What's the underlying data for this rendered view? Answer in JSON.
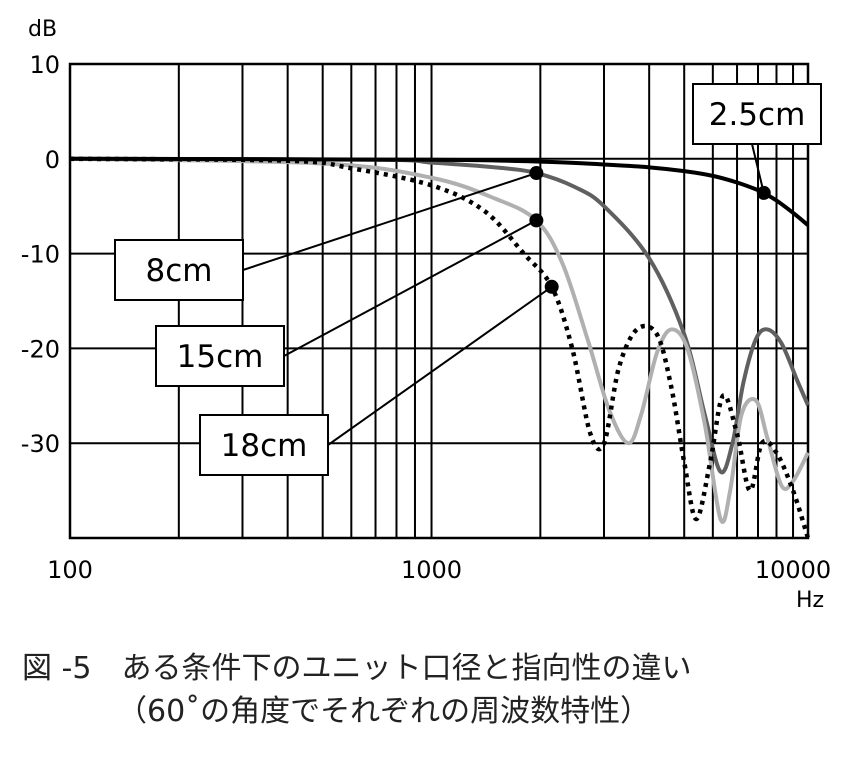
{
  "chart_data": {
    "type": "line",
    "x_scale": "log",
    "xlim": [
      100,
      11000
    ],
    "ylim": [
      -40,
      10
    ],
    "grid": true,
    "ylabel": "dB",
    "xlabel": "Hz",
    "x_ticks": [
      "100",
      "1000",
      "10000"
    ],
    "y_ticks": [
      "10",
      "0",
      "-10",
      "-20",
      "-30"
    ],
    "series": [
      {
        "name": "2.5cm",
        "color": "#000000",
        "style": "solid",
        "x": [
          100,
          1000,
          2000,
          3000,
          4000,
          5000,
          6000,
          7000,
          8000,
          8300,
          9000,
          10000,
          11000
        ],
        "y": [
          0,
          -0.1,
          -0.3,
          -0.6,
          -0.9,
          -1.3,
          -1.8,
          -2.5,
          -3.3,
          -3.6,
          -4.4,
          -5.7,
          -7.0
        ],
        "marker": {
          "x": 8300,
          "y": -3.6
        }
      },
      {
        "name": "8cm",
        "color": "#606060",
        "style": "solid",
        "x": [
          100,
          700,
          1000,
          1500,
          1950,
          2500,
          3000,
          4000,
          5000,
          5700,
          6300,
          6800,
          7300,
          7900,
          8500,
          9300,
          10300,
          11000
        ],
        "y": [
          0,
          -0.1,
          -0.4,
          -0.9,
          -1.5,
          -3.0,
          -5.0,
          -10.5,
          -18.5,
          -27.0,
          -33.0,
          -30.0,
          -23.5,
          -19.0,
          -18.0,
          -19.5,
          -23.5,
          -26.0
        ],
        "marker": {
          "x": 1950,
          "y": -1.5
        }
      },
      {
        "name": "15cm",
        "color": "#b0b0b0",
        "style": "solid",
        "x": [
          100,
          500,
          1000,
          1500,
          1950,
          2300,
          2700,
          3100,
          3500,
          3800,
          4200,
          4600,
          5100,
          5700,
          6300,
          6700,
          7200,
          7900,
          8500,
          9300,
          10000,
          11000
        ],
        "y": [
          0,
          -0.5,
          -2.0,
          -4.2,
          -6.5,
          -11.0,
          -19.0,
          -26.5,
          -30.0,
          -27.0,
          -20.5,
          -18.0,
          -20.0,
          -28.0,
          -38.0,
          -35.0,
          -27.0,
          -25.5,
          -29.5,
          -34.5,
          -34.0,
          -31.0
        ],
        "marker": {
          "x": 1950,
          "y": -6.5
        }
      },
      {
        "name": "18cm",
        "color": "#000000",
        "style": "dotted",
        "x": [
          100,
          400,
          600,
          1000,
          1400,
          1800,
          2150,
          2450,
          2750,
          3000,
          3300,
          3700,
          4200,
          4600,
          5000,
          5400,
          5900,
          6400,
          7000,
          7600,
          8200,
          9000,
          10000,
          11000
        ],
        "y": [
          0,
          -0.2,
          -1.0,
          -2.8,
          -5.5,
          -10.0,
          -13.5,
          -20.0,
          -29.0,
          -30.0,
          -22.0,
          -18.0,
          -18.5,
          -24.0,
          -32.0,
          -38.0,
          -32.0,
          -25.0,
          -29.0,
          -35.0,
          -30.0,
          -31.0,
          -35.0,
          -40.0
        ],
        "marker": {
          "x": 2150,
          "y": -13.5
        }
      }
    ],
    "callouts": [
      {
        "label": "2.5cm",
        "series": "2.5cm"
      },
      {
        "label": "8cm",
        "series": "8cm"
      },
      {
        "label": "15cm",
        "series": "15cm"
      },
      {
        "label": "18cm",
        "series": "18cm"
      }
    ]
  },
  "caption": {
    "line1": "図 -5　ある条件下のユニット口径と指向性の違い",
    "line2": "（60˚の角度でそれぞれの周波数特性）"
  }
}
